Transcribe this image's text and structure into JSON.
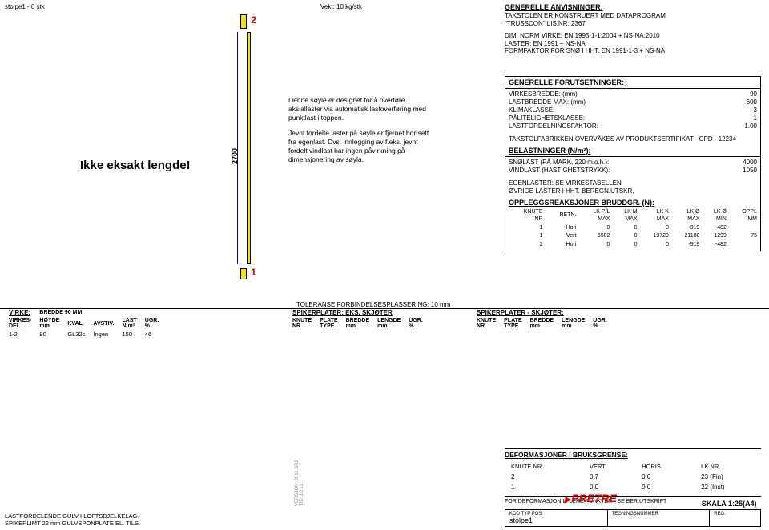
{
  "header": {
    "left": "stolpe1 -  0 stk",
    "mid": "Vekt: 10 kg/stk"
  },
  "marker_top": "2",
  "marker_bot": "1",
  "dim_vert": "2700",
  "main_note": "Ikke eksakt lengde!",
  "desc_p1": "Denne søyle er designet for å overføre aksiallaster via automatisk lastoverføring med punktlast i toppen.",
  "desc_p2": "Jevnt fordelte laster på søyle er fjernet bortsett fra egenlast. Dvs. innlegging av f.eks. jevnt fordelt vindlast har ingen påvirkning på dimensjonering av søyla.",
  "anvis": {
    "title": "GENERELLE ANVISNINGER:",
    "l1": "TAKSTOLEN ER KONSTRUERT MED DATAPROGRAM",
    "l2": "\"TRUSSCON\" LIS.NR: 2367",
    "l3": "DIM. NORM VIRKE:  EN 1995-1-1:2004 + NS-NA:2010",
    "l4": "LASTER: EN 1991 + NS-NA",
    "l5": "FORMFAKTOR FOR SNØ I HHT. EN 1991-1-3 + NS-NA"
  },
  "foruts": {
    "title": "GENERELLE FORUTSETNINGER:",
    "rows": [
      [
        "VIRKESBREDDE: (mm)",
        "90"
      ],
      [
        "LASTBREDDE MAX: (mm)",
        "600"
      ],
      [
        "KLIMAKLASSE:",
        "3"
      ],
      [
        "PÅLITELIGHETSKLASSE:",
        "1"
      ],
      [
        "LASTFORDELNINGSFAKTOR:",
        "1.00"
      ]
    ],
    "note": "TAKSTOLFABRIKKEN OVERVÅKES AV PRODUKTSERTIFIKAT  - CPD - 12234"
  },
  "belast": {
    "title": "BELASTNINGER (N/m²):",
    "rows": [
      [
        "SNØLAST (PÅ MARK, 220 m.o.h.):",
        "4000"
      ],
      [
        "VINDLAST (HASTIGHETSTRYKK):",
        "1050"
      ]
    ],
    "note": "EGENLASTER: SE VIRKESTABELLEN\nØVRIGE LASTER I HHT. BEREGN.UTSKR."
  },
  "opplegg": {
    "title": "OPPLEGGSREAKSJONER BRUDDGR. (N):",
    "head": [
      "KNUTE\nNR",
      "RETN.",
      "LK P/L\nMAX",
      "LK M\nMAX",
      "LK K\nMAX",
      "LK Ø\nMAX",
      "LK Ø\nMIN",
      "OPPL\nMM"
    ],
    "rows": [
      [
        "1",
        "Hori",
        "0",
        "0",
        "0",
        "-919",
        "-482",
        ""
      ],
      [
        "1",
        "Vert",
        "6502",
        "0",
        "19729",
        "21188",
        "1299",
        "75"
      ],
      [
        "2",
        "Hori",
        "0",
        "0",
        "0",
        "-919",
        "-482",
        ""
      ]
    ]
  },
  "tolerance": "TOLERANSE FORBINDELSESPLASSERING: 10 mm",
  "virke": {
    "title": "VIRKE:",
    "sub": "BREDDE 90 MM",
    "head": [
      "VIRKES-\nDEL",
      "HØYDE\nmm",
      "KVAL.",
      "AVSTIV.",
      "LAST\nN/m²",
      "UGR.\n%"
    ],
    "rows": [
      [
        "1-2",
        "90",
        "GL32c",
        "Ingen",
        "150",
        "46"
      ]
    ]
  },
  "spiker1": {
    "title": "SPIKERPLATER: EKS. SKJØTER",
    "head": [
      "KNUTE\nNR",
      "PLATE\nTYPE",
      "BREDDE\nmm",
      "LENGDE\nmm",
      "UGR.\n%"
    ]
  },
  "spiker2": {
    "title": "SPIKERPLATER - SKJØTER:",
    "head": [
      "KNUTE\nNR",
      "PLATE\nTYPE",
      "BREDDE\nmm",
      "LENGDE\nmm",
      "UGR.\n%"
    ]
  },
  "deform": {
    "title": "DEFORMASJONER I BRUKSGRENSE:",
    "head": [
      "KNUTE NR",
      "VERT.",
      "HORIS.",
      "LK NR."
    ],
    "rows": [
      [
        "2",
        "0.7",
        "0.0",
        "23 (Fin)"
      ],
      [
        "1",
        "0.0",
        "0.0",
        "22 (Inst)"
      ]
    ],
    "note": "FOR DEFORMASJON I FLERE PUNKTER - SE BER.UTSKRIFT"
  },
  "footer_left": {
    "l1": "LASTFORDELENDE GULV I LOFTSBJELKELAG.",
    "l2": "SPIKERLIMT 22 mm GULVSPONPLATE EL. TILS."
  },
  "ver_text": "VERSJON: 2011 SR2\nTID: 10:13",
  "logo": "PRETRE",
  "title_block": {
    "kod": "KOD TYP POS",
    "name": "stolpe1",
    "teg": "TEGNINGSNUMMER",
    "reg": "REG.",
    "scale": "SKALA 1:25(A4)"
  }
}
